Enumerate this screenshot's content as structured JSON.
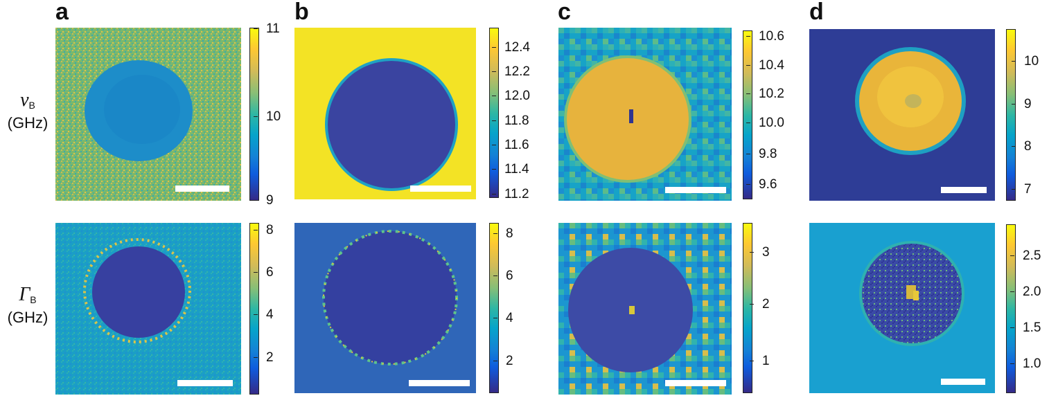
{
  "panels": [
    {
      "letter": "a"
    },
    {
      "letter": "b"
    },
    {
      "letter": "c"
    },
    {
      "letter": "d"
    }
  ],
  "row_labels": {
    "top": {
      "symbol": "ν",
      "subscript": "B",
      "unit": "(GHz)"
    },
    "bottom": {
      "symbol": "Γ",
      "subscript": "B",
      "unit": "(GHz)"
    }
  },
  "colorbars": {
    "a_top": [
      "11",
      "10",
      "9"
    ],
    "a_bottom": [
      "8",
      "6",
      "4",
      "2"
    ],
    "b_top": [
      "12.4",
      "12.2",
      "12.0",
      "11.8",
      "11.6",
      "11.4",
      "11.2"
    ],
    "b_bottom": [
      "8",
      "6",
      "4",
      "2"
    ],
    "c_top": [
      "10.6",
      "10.4",
      "10.2",
      "10.0",
      "9.8",
      "9.6"
    ],
    "c_bottom": [
      "3",
      "2",
      "1"
    ],
    "d_top": [
      "10",
      "9",
      "8",
      "7"
    ],
    "d_bottom": [
      "2.5",
      "2.0",
      "1.5",
      "1.0"
    ]
  },
  "colors": {
    "yellow": "#f5e31f",
    "orange": "#e8b43a",
    "green": "#6fb96a",
    "teal": "#19a3c6",
    "blue": "#1e79cc",
    "navy": "#3a41a0",
    "darknavy": "#2f3590"
  }
}
